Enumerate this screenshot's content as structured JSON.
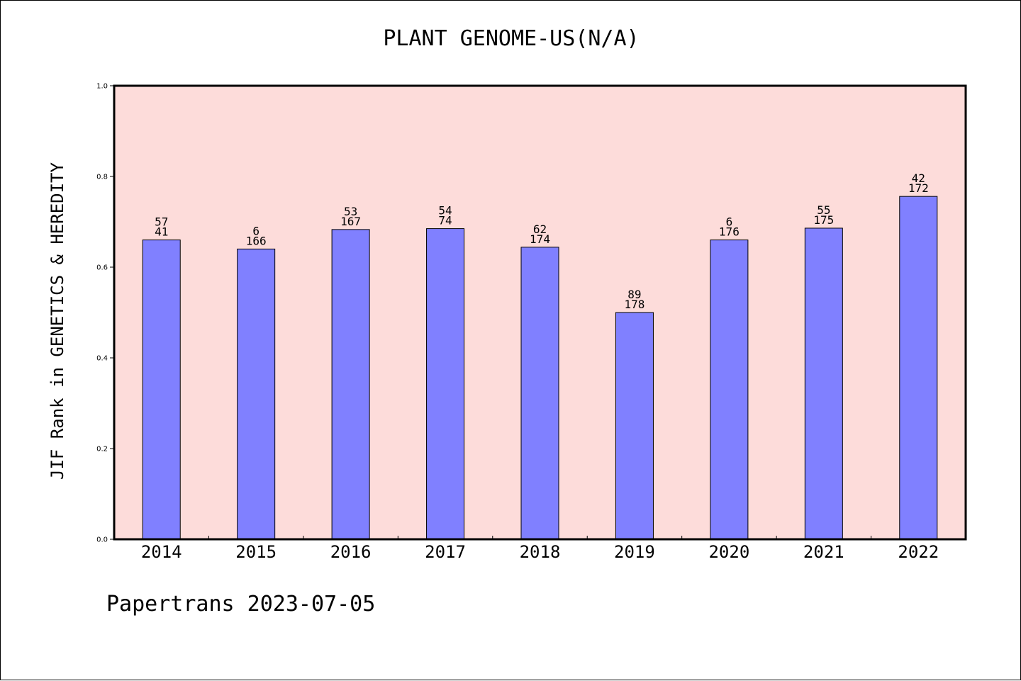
{
  "title": "PLANT GENOME-US(N/A)",
  "footer": "Papertrans 2023-07-05",
  "chart_data": {
    "type": "bar",
    "title": "PLANT GENOME-US(N/A)",
    "xlabel": "",
    "ylabel": "JIF Rank in GENETICS & HEREDITY",
    "ylim": [
      0,
      1.0
    ],
    "yticks": [
      0.0,
      0.2,
      0.4,
      0.6,
      0.8,
      1.0
    ],
    "ytick_labels": [
      "0.0",
      "0.2",
      "0.4",
      "0.6",
      "0.8",
      "1.0"
    ],
    "grid": false,
    "categories": [
      "2014",
      "2015",
      "2016",
      "2017",
      "2018",
      "2019",
      "2020",
      "2021",
      "2022"
    ],
    "values": [
      0.66,
      0.64,
      0.683,
      0.685,
      0.644,
      0.5,
      0.66,
      0.686,
      0.756
    ],
    "bar_labels": [
      [
        "57",
        "41"
      ],
      [
        "6",
        "166"
      ],
      [
        "53",
        "167"
      ],
      [
        "54",
        "74"
      ],
      [
        "62",
        "174"
      ],
      [
        "89",
        "178"
      ],
      [
        "6",
        "176"
      ],
      [
        "55",
        "175"
      ],
      [
        "42",
        "172"
      ]
    ],
    "colors": {
      "bar": "#8080ff",
      "plot_background": "#fddcda",
      "axis": "#000000"
    }
  }
}
